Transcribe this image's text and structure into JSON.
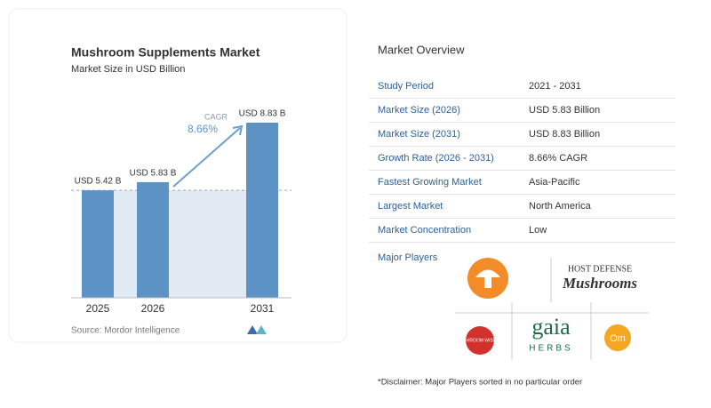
{
  "chart_data": {
    "type": "bar",
    "title": "Mushroom Supplements Market",
    "subtitle": "Market Size in USD Billion",
    "categories": [
      "2025",
      "2026",
      "2031"
    ],
    "values": [
      5.42,
      5.83,
      8.83
    ],
    "value_labels": [
      "USD 5.42 B",
      "USD 5.83 B",
      "USD 8.83 B"
    ],
    "color": "#5d93c4",
    "annotation": {
      "label": "CAGR",
      "value": "8.66%"
    },
    "source": "Source: Mordor Intelligence"
  },
  "overview": {
    "title": "Market Overview",
    "rows": [
      [
        "Study Period",
        "2021 - 2031"
      ],
      [
        "Market Size (2026)",
        "USD 5.83 Billion"
      ],
      [
        "Market Size (2031)",
        "USD 8.83 Billion"
      ],
      [
        "Growth Rate (2026 - 2031)",
        "8.66% CAGR"
      ],
      [
        "Fastest Growing Market",
        "Asia-Pacific"
      ],
      [
        "Largest Market",
        "North America"
      ],
      [
        "Market Concentration",
        "Low"
      ]
    ]
  },
  "major_players": {
    "title": "Major Players",
    "host_defense": [
      "HOST DEFENSE",
      "Mushrooms"
    ],
    "mushroom_wisdom": "MUSHROOM WISDOM",
    "gaia": [
      "gaia",
      "HERBS"
    ],
    "om": "Om"
  },
  "disclaimer": "*Disclaimer: Major Players sorted in no particular order"
}
